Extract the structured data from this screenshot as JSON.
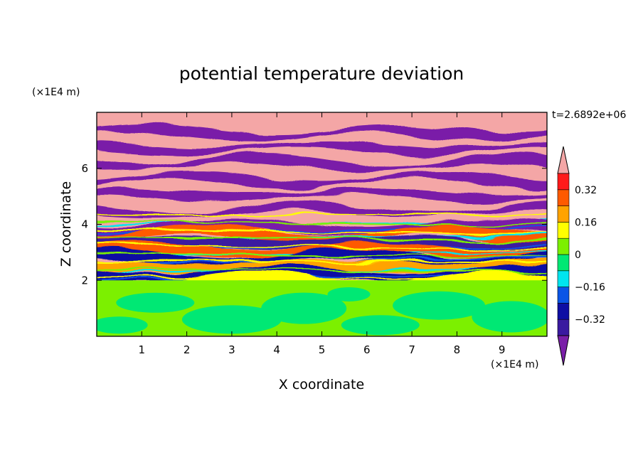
{
  "chart_data": {
    "type": "heatmap",
    "title": "potential temperature deviation",
    "xlabel": "X coordinate",
    "ylabel": "Z coordinate",
    "x_scale_label": "(×1E4 m)",
    "y_scale_label": "(×1E4 m)",
    "time_label": "t=2.6892e+06",
    "xlim": [
      0,
      10
    ],
    "ylim": [
      0,
      8
    ],
    "x_ticks": [
      1,
      2,
      3,
      4,
      5,
      6,
      7,
      8,
      9
    ],
    "x_tick_labels": [
      "1",
      "2",
      "3",
      "4",
      "5",
      "6",
      "7",
      "8",
      "9"
    ],
    "y_ticks": [
      2,
      4,
      6
    ],
    "y_tick_labels": [
      "2",
      "4",
      "6"
    ],
    "colorbar": {
      "levels": [
        -0.48,
        -0.4,
        -0.32,
        -0.24,
        -0.16,
        -0.08,
        0,
        0.08,
        0.16,
        0.24,
        0.32,
        0.4,
        0.48
      ],
      "tick_values": [
        -0.32,
        -0.16,
        0,
        0.16,
        0.32
      ],
      "tick_labels": [
        "−0.32",
        "−0.16",
        "0",
        "0.16",
        "0.32"
      ],
      "colors": [
        "#7a1fa8",
        "#3a1aa0",
        "#0e0ea4",
        "#0a55e6",
        "#00e5ef",
        "#00e874",
        "#7cf000",
        "#ffff00",
        "#ffa300",
        "#ff5a00",
        "#ff1a1a",
        "#f4a6a6"
      ],
      "extend": "both"
    },
    "bands": [
      {
        "z": 7.7,
        "value": 0.5
      },
      {
        "z": 7.42,
        "value": -0.5
      },
      {
        "z": 7.14,
        "value": 0.5
      },
      {
        "z": 6.86,
        "value": -0.5
      },
      {
        "z": 6.58,
        "value": 0.5
      },
      {
        "z": 6.3,
        "value": -0.5
      },
      {
        "z": 6.02,
        "value": 0.5
      },
      {
        "z": 5.74,
        "value": -0.5
      },
      {
        "z": 5.46,
        "value": 0.5
      },
      {
        "z": 5.18,
        "value": -0.5
      },
      {
        "z": 4.9,
        "value": 0.5
      },
      {
        "z": 4.62,
        "value": -0.5
      },
      {
        "z": 4.34,
        "value": 0.5
      },
      {
        "z": 4.06,
        "value": -0.5
      },
      {
        "z": 3.78,
        "value": 0.3
      },
      {
        "z": 3.5,
        "value": -0.35
      },
      {
        "z": 3.22,
        "value": 0.25
      },
      {
        "z": 2.94,
        "value": -0.3
      },
      {
        "z": 2.66,
        "value": 0.2
      },
      {
        "z": 2.38,
        "value": -0.25
      },
      {
        "z": 2.1,
        "value": 0.15
      }
    ],
    "lower_layer": {
      "z_top": 2.0,
      "value_range": [
        0,
        0.1
      ]
    }
  }
}
